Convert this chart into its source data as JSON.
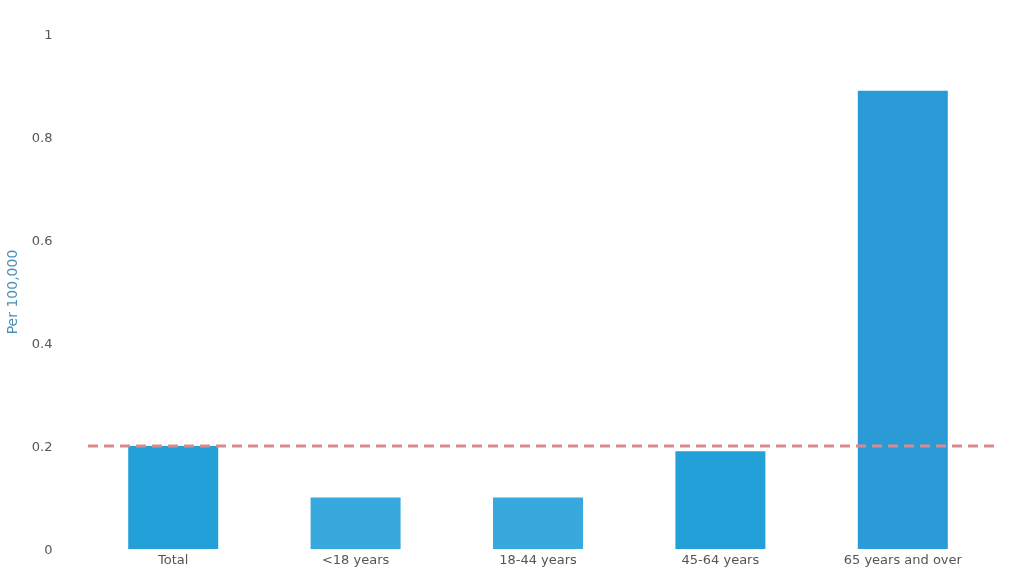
{
  "chart_data": {
    "type": "bar",
    "ylabel": "Per 100,000",
    "categories": [
      "Total",
      "<18 years",
      "18-44 years",
      "45-64 years",
      "65 years and over"
    ],
    "values": [
      0.2,
      0.1,
      0.1,
      0.19,
      0.89
    ],
    "colors": [
      "#24a0d8",
      "#38a9dc",
      "#38a9dc",
      "#24a0d8",
      "#2a9bd6"
    ],
    "ylim": [
      0,
      1
    ],
    "yticks": [
      0,
      0.2,
      0.4,
      0.6,
      0.8,
      1
    ],
    "grid": false,
    "ref_lines": [
      {
        "axis": "y",
        "value": 0.2,
        "color": "#d98a8a",
        "line_style": "dashed"
      }
    ]
  }
}
